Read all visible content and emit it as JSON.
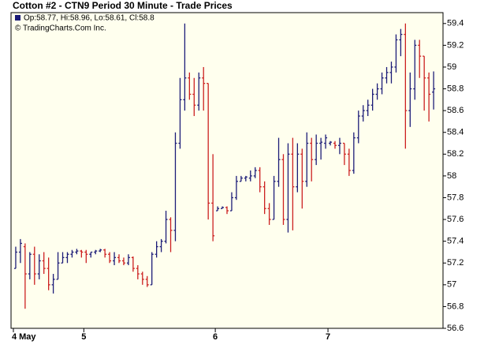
{
  "chart_data": {
    "type": "ohlc",
    "title": "Cotton #2 - CTN9 Period 30 Minute - Trade Prices",
    "legend_text": "Op:58.77, Hi:58.96, Lo:58.61, Cl:58.8",
    "credit": "© TradingCharts.Com Inc.",
    "up_color": "#1c1c78",
    "down_color": "#cc2020",
    "background": "#ffffee",
    "ylim": [
      56.6,
      59.5
    ],
    "yticks": [
      56.6,
      56.8,
      57,
      57.2,
      57.4,
      57.6,
      57.8,
      58,
      58.2,
      58.4,
      58.6,
      58.8,
      59,
      59.2,
      59.4
    ],
    "xlim": [
      -1,
      91
    ],
    "xticks": [
      {
        "value": -0.5,
        "label": "4 May"
      },
      {
        "value": 14.5,
        "label": "5"
      },
      {
        "value": 42.5,
        "label": "6"
      },
      {
        "value": 66.5,
        "label": "7"
      }
    ],
    "values": [
      [
        57.15,
        57.35,
        57.15,
        57.3
      ],
      [
        57.3,
        57.42,
        57.2,
        57.38
      ],
      [
        57.35,
        57.38,
        56.78,
        57.1
      ],
      [
        57.1,
        57.3,
        57.05,
        57.28
      ],
      [
        57.28,
        57.35,
        57.0,
        57.1
      ],
      [
        57.1,
        57.28,
        57.05,
        57.22
      ],
      [
        57.22,
        57.3,
        57.1,
        57.15
      ],
      [
        57.15,
        57.25,
        56.95,
        57.0
      ],
      [
        57.0,
        57.1,
        56.92,
        57.05
      ],
      [
        57.05,
        57.3,
        57.05,
        57.2
      ],
      [
        57.2,
        57.3,
        57.2,
        57.25
      ],
      [
        57.25,
        57.3,
        57.2,
        57.28
      ],
      [
        57.28,
        57.32,
        57.25,
        57.3
      ],
      [
        57.3,
        57.33,
        57.28,
        57.31
      ],
      [
        57.31,
        57.32,
        57.25,
        57.3
      ],
      [
        57.3,
        57.32,
        57.2,
        57.28
      ],
      [
        57.28,
        57.3,
        57.25,
        57.3
      ],
      [
        57.3,
        57.32,
        57.28,
        57.31
      ],
      [
        57.31,
        57.33,
        57.3,
        57.32
      ],
      [
        57.32,
        57.33,
        57.25,
        57.28
      ],
      [
        57.28,
        57.3,
        57.2,
        57.22
      ],
      [
        57.22,
        57.3,
        57.18,
        57.25
      ],
      [
        57.25,
        57.28,
        57.2,
        57.22
      ],
      [
        57.22,
        57.25,
        57.18,
        57.2
      ],
      [
        57.2,
        57.28,
        57.18,
        57.25
      ],
      [
        57.25,
        57.26,
        57.12,
        57.15
      ],
      [
        57.15,
        57.18,
        57.05,
        57.1
      ],
      [
        57.1,
        57.12,
        57.0,
        57.05
      ],
      [
        57.05,
        57.08,
        56.98,
        57.0
      ],
      [
        57.0,
        57.3,
        57.0,
        57.28
      ],
      [
        57.28,
        57.4,
        57.25,
        57.35
      ],
      [
        57.35,
        57.42,
        57.3,
        57.4
      ],
      [
        57.4,
        57.68,
        57.38,
        57.6
      ],
      [
        57.6,
        57.62,
        57.3,
        57.5
      ],
      [
        57.5,
        58.4,
        57.4,
        58.3
      ],
      [
        58.3,
        58.9,
        58.25,
        58.7
      ],
      [
        58.7,
        59.4,
        58.6,
        58.9
      ],
      [
        58.9,
        58.95,
        58.7,
        58.75
      ],
      [
        58.75,
        58.9,
        58.55,
        58.65
      ],
      [
        58.65,
        58.95,
        58.6,
        58.9
      ],
      [
        58.9,
        59.0,
        58.6,
        58.85
      ],
      [
        58.85,
        58.85,
        57.6,
        57.75
      ],
      [
        57.75,
        58.2,
        57.4,
        57.45
      ],
      [
        57.68,
        57.72,
        57.68,
        57.7
      ],
      [
        57.7,
        57.72,
        57.7,
        57.71
      ],
      [
        57.71,
        57.72,
        57.65,
        57.68
      ],
      [
        57.68,
        57.85,
        57.68,
        57.8
      ],
      [
        57.8,
        58.0,
        57.78,
        57.95
      ],
      [
        57.95,
        58.0,
        57.95,
        57.98
      ],
      [
        57.98,
        58.0,
        57.95,
        57.99
      ],
      [
        57.98,
        58.05,
        57.95,
        58.0
      ],
      [
        58.0,
        58.08,
        57.98,
        58.05
      ],
      [
        58.05,
        58.08,
        57.85,
        57.9
      ],
      [
        57.9,
        57.95,
        57.65,
        57.7
      ],
      [
        57.7,
        57.75,
        57.55,
        57.6
      ],
      [
        57.6,
        58.0,
        57.6,
        57.95
      ],
      [
        57.95,
        58.35,
        57.9,
        58.15
      ],
      [
        58.15,
        58.2,
        57.55,
        57.6
      ],
      [
        57.6,
        58.3,
        57.48,
        58.2
      ],
      [
        58.2,
        58.35,
        57.5,
        57.9
      ],
      [
        57.9,
        58.3,
        57.85,
        58.2
      ],
      [
        58.2,
        58.25,
        57.7,
        57.95
      ],
      [
        57.95,
        58.4,
        57.9,
        58.3
      ],
      [
        58.3,
        58.35,
        57.95,
        58.15
      ],
      [
        58.15,
        58.38,
        58.1,
        58.3
      ],
      [
        58.3,
        58.35,
        58.15,
        58.31
      ],
      [
        58.3,
        58.38,
        58.25,
        58.35
      ],
      [
        58.3,
        58.32,
        58.28,
        58.31
      ],
      [
        58.3,
        58.32,
        58.25,
        58.28
      ],
      [
        58.28,
        58.35,
        58.2,
        58.3
      ],
      [
        58.3,
        58.3,
        58.1,
        58.2
      ],
      [
        58.2,
        58.25,
        58.0,
        58.05
      ],
      [
        58.05,
        58.4,
        58.02,
        58.35
      ],
      [
        58.35,
        58.6,
        58.3,
        58.55
      ],
      [
        58.55,
        58.65,
        58.5,
        58.6
      ],
      [
        58.6,
        58.7,
        58.55,
        58.65
      ],
      [
        58.65,
        58.8,
        58.6,
        58.75
      ],
      [
        58.75,
        58.85,
        58.7,
        58.8
      ],
      [
        58.8,
        58.95,
        58.75,
        58.9
      ],
      [
        58.9,
        59.0,
        58.85,
        58.95
      ],
      [
        58.95,
        59.05,
        58.85,
        59.0
      ],
      [
        59.0,
        59.3,
        58.95,
        59.25
      ],
      [
        59.25,
        59.35,
        59.1,
        59.3
      ],
      [
        59.3,
        59.4,
        58.25,
        58.6
      ],
      [
        58.6,
        58.95,
        58.45,
        58.8
      ],
      [
        58.8,
        59.25,
        58.7,
        59.2
      ],
      [
        59.2,
        59.25,
        58.9,
        59.1
      ],
      [
        59.1,
        59.1,
        58.6,
        58.9
      ],
      [
        58.9,
        58.95,
        58.5,
        58.75
      ],
      [
        58.77,
        58.96,
        58.61,
        58.8
      ]
    ]
  }
}
